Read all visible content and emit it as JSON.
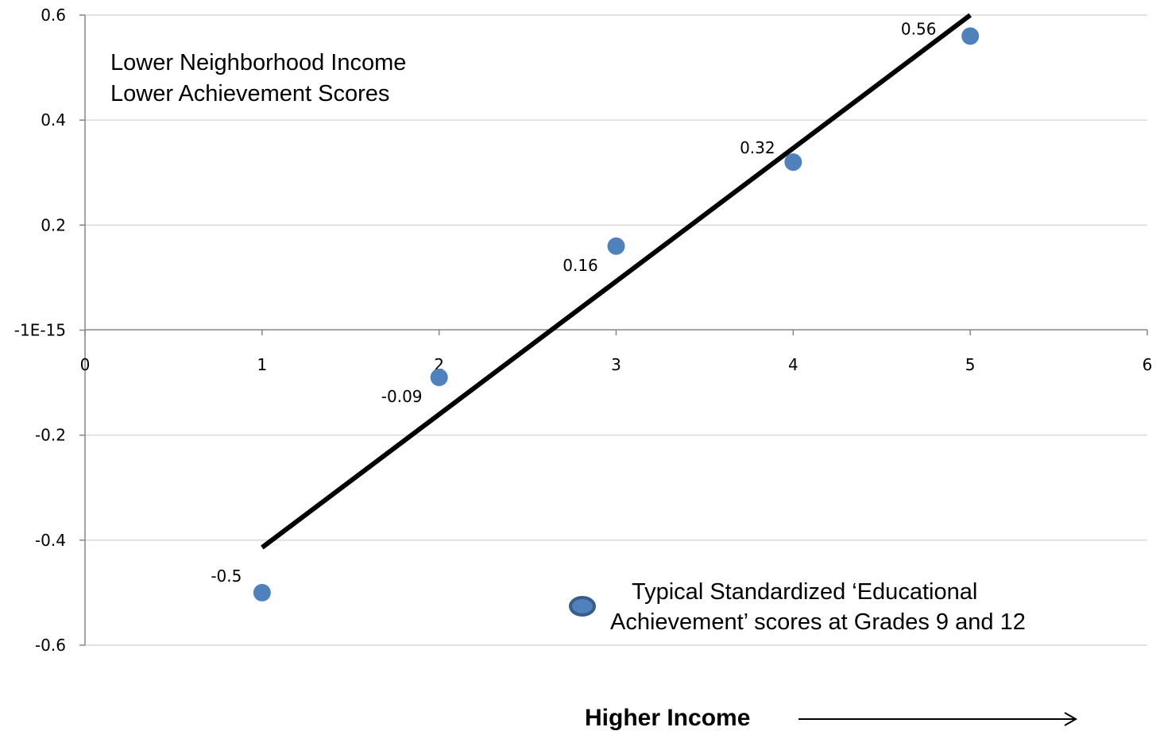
{
  "chart_data": {
    "type": "scatter",
    "title": "",
    "xlabel": "Higher Income",
    "ylabel": "",
    "xlim": [
      0,
      6
    ],
    "ylim": [
      -0.6,
      0.6
    ],
    "x_ticks": [
      "0",
      "1",
      "2",
      "3",
      "4",
      "5",
      "6"
    ],
    "y_ticks": [
      "0.6",
      "0.4",
      "0.2",
      "-1E-15",
      "-0.2",
      "-0.4",
      "-0.6"
    ],
    "grid": true,
    "series": [
      {
        "name": "Typical Standardized ‘Educational Achievement’ scores at Grades 9 and 12",
        "x": [
          1,
          2,
          3,
          4,
          5
        ],
        "y": [
          -0.5,
          -0.09,
          0.16,
          0.32,
          0.56
        ],
        "labels": [
          "-0.5",
          "-0.09",
          "0.16",
          "0.32",
          "0.56"
        ]
      }
    ],
    "trendline": {
      "type": "linear",
      "x": [
        1,
        5
      ],
      "y": [
        -0.414,
        0.6
      ]
    },
    "annotations": [
      "Lower Neighborhood Income",
      "Lower Achievement Scores"
    ],
    "legend": {
      "placement": "bottom-right",
      "line1": "Typical Standardized ‘Educational",
      "line2": "Achievement’ scores at Grades 9 and 12"
    },
    "colors": {
      "marker": "#4f81bd",
      "marker_border": "#385d8a",
      "trendline": "#000000",
      "grid": "#d9d9d9",
      "axis": "#868686"
    }
  }
}
